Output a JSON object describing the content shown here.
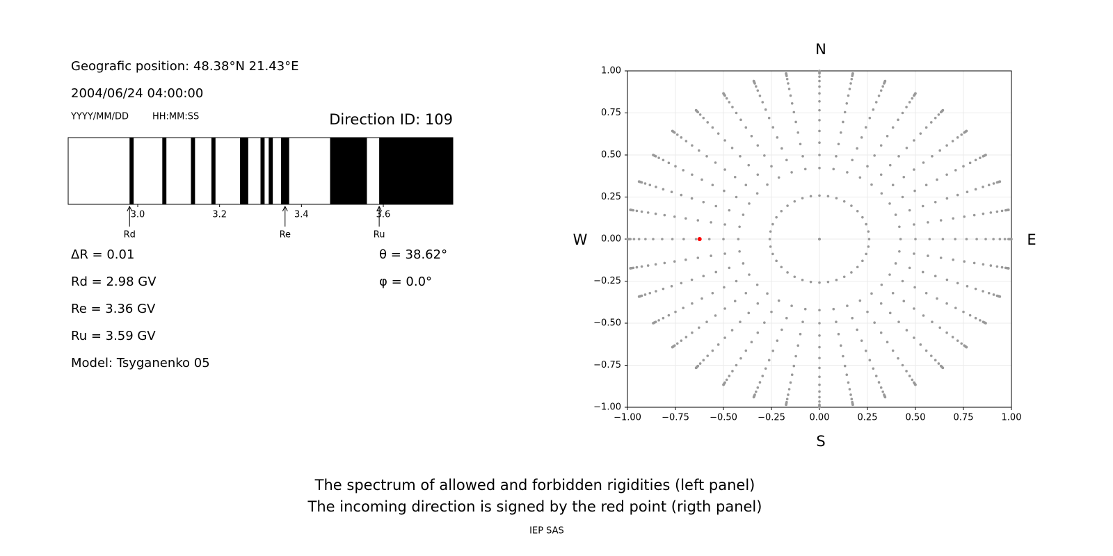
{
  "header": {
    "position": "Geografic position: 48.38°N 21.43°E",
    "datetime": "2004/06/24 04:00:00",
    "date_format": "YYYY/MM/DD",
    "time_format": "HH:MM:SS",
    "direction_id": "Direction ID: 109"
  },
  "parameters": [
    "ΔR = 0.01",
    "Rd = 2.98 GV",
    "Re = 3.36 GV",
    "Ru = 3.59 GV",
    "Model: Tsyganenko 05"
  ],
  "angles": [
    "θ = 38.62°",
    "φ = 0.0°"
  ],
  "chart_data": [
    {
      "type": "spectrum",
      "color": "#000000",
      "xlim": [
        2.83,
        3.77
      ],
      "xticks": [
        {
          "value": 3,
          "label": "3.0"
        },
        {
          "value": 3.2,
          "label": "3.2"
        },
        {
          "value": 3.4,
          "label": "3.4"
        },
        {
          "value": 3.6,
          "label": "3.6"
        }
      ],
      "intervals": [
        [
          2.98,
          2.99
        ],
        [
          3.06,
          3.07
        ],
        [
          3.13,
          3.14
        ],
        [
          3.18,
          3.19
        ],
        [
          3.25,
          3.27
        ],
        [
          3.3,
          3.31
        ],
        [
          3.32,
          3.33
        ],
        [
          3.35,
          3.37
        ],
        [
          3.47,
          3.56
        ],
        [
          3.59,
          3.77
        ]
      ],
      "markers": [
        {
          "label": "Rd",
          "value": 2.98
        },
        {
          "label": "Re",
          "value": 3.36
        },
        {
          "label": "Ru",
          "value": 3.59
        }
      ]
    },
    {
      "type": "scatter",
      "projection": "zenith-azimuth",
      "color": "#999999",
      "grid": true,
      "xlim": [
        -1,
        1
      ],
      "ylim": [
        -1,
        1
      ],
      "xticks": [
        {
          "value": -1,
          "label": "−1.00"
        },
        {
          "value": -0.75,
          "label": "−0.75"
        },
        {
          "value": -0.5,
          "label": "−0.50"
        },
        {
          "value": -0.25,
          "label": "−0.25"
        },
        {
          "value": 0,
          "label": "0.00"
        },
        {
          "value": 0.25,
          "label": "0.25"
        },
        {
          "value": 0.5,
          "label": "0.50"
        },
        {
          "value": 0.75,
          "label": "0.75"
        },
        {
          "value": 1,
          "label": "1.00"
        }
      ],
      "yticks": [
        {
          "value": -1,
          "label": "−1.00"
        },
        {
          "value": -0.75,
          "label": "−0.75"
        },
        {
          "value": -0.5,
          "label": "−0.50"
        },
        {
          "value": -0.25,
          "label": "−0.25"
        },
        {
          "value": 0,
          "label": "0.00"
        },
        {
          "value": 0.25,
          "label": "0.25"
        },
        {
          "value": 0.5,
          "label": "0.50"
        },
        {
          "value": 0.75,
          "label": "0.75"
        },
        {
          "value": 1,
          "label": "1.00"
        }
      ],
      "zenith": [
        0,
        15,
        25,
        30,
        35,
        40,
        45,
        50,
        55,
        60,
        65,
        70,
        75,
        80,
        82,
        84,
        86,
        88,
        90
      ],
      "azimuth": [
        0,
        10,
        20,
        30,
        40,
        50,
        60,
        70,
        80,
        90,
        100,
        110,
        120,
        130,
        140,
        150,
        160,
        170,
        180,
        190,
        200,
        210,
        220,
        230,
        240,
        250,
        260,
        270,
        280,
        290,
        300,
        310,
        320,
        330,
        340,
        350
      ],
      "highlight": {
        "zenith": 38.62,
        "azimuth": 0,
        "color": "#ff0000"
      },
      "compass": {
        "top": "N",
        "bottom": "S",
        "left": "W",
        "right": "E"
      }
    }
  ],
  "caption": [
    "The spectrum of allowed and forbidden rigidities (left panel)",
    "The incoming direction is signed by the red point (rigth panel)"
  ],
  "footer": "IEP SAS"
}
